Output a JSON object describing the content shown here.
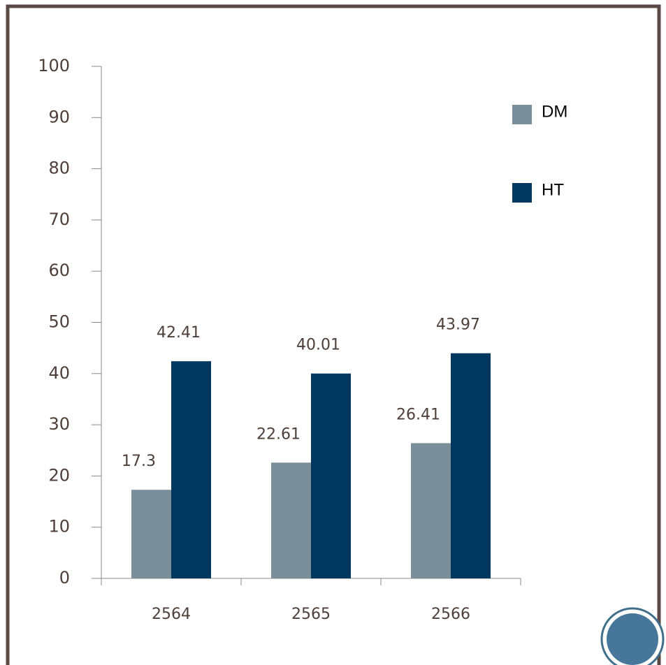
{
  "chart_data": {
    "type": "bar",
    "categories": [
      "2564",
      "2565",
      "2566"
    ],
    "series": [
      {
        "name": "DM",
        "color": "#7a8f9a",
        "values": [
          17.3,
          22.61,
          26.41
        ]
      },
      {
        "name": "HT",
        "color": "#00375f",
        "values": [
          42.41,
          40.01,
          43.97
        ]
      }
    ],
    "ylim": [
      0,
      100
    ],
    "yticks": [
      0,
      10,
      20,
      30,
      40,
      50,
      60,
      70,
      80,
      90,
      100
    ],
    "legend": "right"
  }
}
